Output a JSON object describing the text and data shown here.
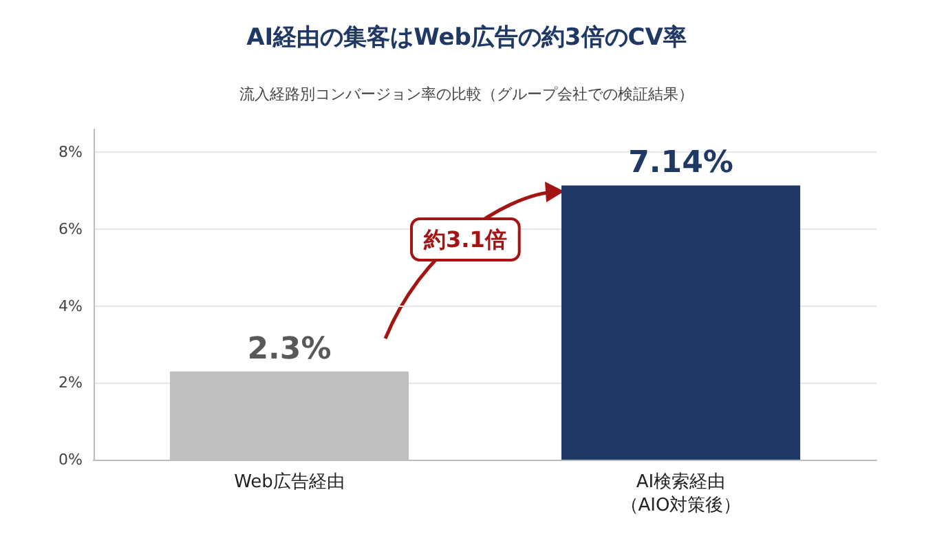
{
  "chart_data": {
    "type": "bar",
    "title": "AI経由の集客はWeb広告の約3倍のCV率",
    "subtitle": "流入経路別コンバージョン率の比較（グループ会社での検証結果）",
    "categories": [
      "Web広告経由",
      "AI検索経由（AIO対策後）"
    ],
    "values": [
      2.3,
      7.14
    ],
    "colors": [
      "#bfbfbf",
      "#1f3864"
    ],
    "value_labels": [
      "2.3%",
      "7.14%"
    ],
    "ylim": [
      0,
      8.6
    ],
    "yticks": [
      {
        "value": 0,
        "label": "0%"
      },
      {
        "value": 2,
        "label": "2%"
      },
      {
        "value": 4,
        "label": "4%"
      },
      {
        "value": 6,
        "label": "6%"
      },
      {
        "value": 8,
        "label": "8%"
      }
    ],
    "grid": "y",
    "annotations": [
      "約3.1倍"
    ]
  }
}
